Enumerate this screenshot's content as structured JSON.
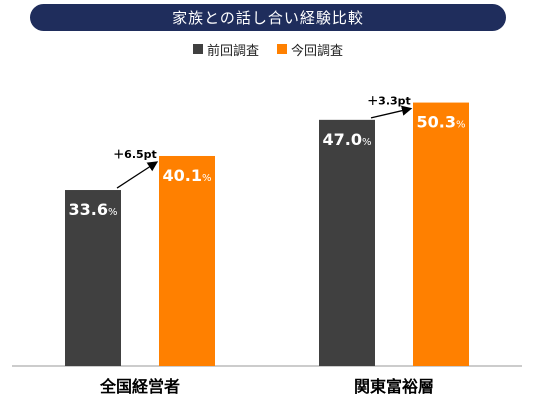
{
  "chart_data": {
    "type": "bar",
    "title": "家族との話し合い経験比較",
    "categories": [
      "全国経営者",
      "関東富裕層"
    ],
    "series": [
      {
        "name": "前回調査",
        "values": [
          33.6,
          47.0
        ],
        "labels": [
          "33.6",
          "47.0"
        ],
        "color": "#404040"
      },
      {
        "name": "今回調査",
        "values": [
          40.1,
          50.3
        ],
        "labels": [
          "40.1",
          "50.3"
        ],
        "color": "#ff8000"
      }
    ],
    "unit": "%",
    "annotations": [
      "＋6.5pt",
      "＋3.3pt"
    ],
    "ylim": [
      0,
      59
    ],
    "grid": false,
    "legend": "top-center"
  }
}
